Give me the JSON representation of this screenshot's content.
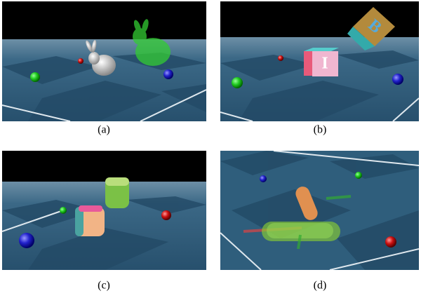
{
  "panels": [
    {
      "caption": "(a)"
    },
    {
      "caption": "(b)",
      "block_letters": [
        "I",
        "B"
      ]
    },
    {
      "caption": "(c)"
    },
    {
      "caption": "(d)"
    }
  ]
}
